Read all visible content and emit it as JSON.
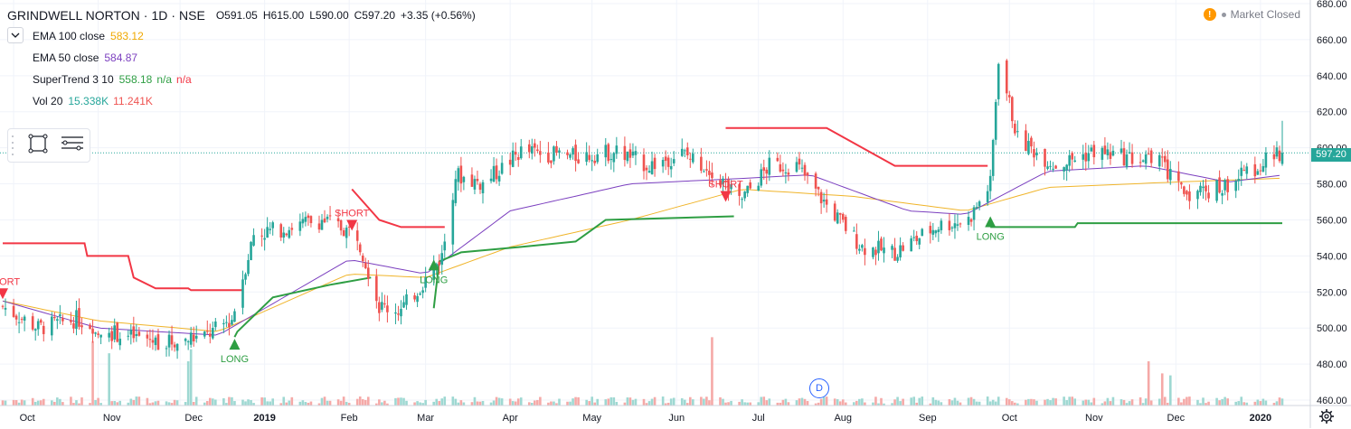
{
  "header": {
    "symbol": "GRINDWELL NORTON",
    "interval": "1D",
    "exchange": "NSE",
    "ohlc": {
      "open": "O591.05",
      "high": "H615.00",
      "low": "L590.00",
      "close": "C597.20",
      "change": "+3.35 (+0.56%)"
    }
  },
  "indicators": [
    {
      "label": "EMA 100 close",
      "values": [
        "583.12"
      ],
      "colors": [
        "#f0a800"
      ]
    },
    {
      "label": "EMA 50 close",
      "values": [
        "584.87"
      ],
      "colors": [
        "#7b3fbf"
      ]
    },
    {
      "label": "SuperTrend 3 10",
      "values": [
        "558.18",
        "n/a",
        "n/a"
      ],
      "colors": [
        "#2e9e43",
        "#2e9e43",
        "#f23645"
      ]
    },
    {
      "label": "Vol 20",
      "values": [
        "15.338K",
        "11.241K"
      ],
      "colors": [
        "#26a69a",
        "#ef5350"
      ]
    }
  ],
  "status": {
    "market": "Market Closed",
    "warning_symbol": "!"
  },
  "price_label": "597.20",
  "d_marker": "D",
  "icons": [
    "chevron-down-icon",
    "rectangle-tool-icon",
    "list-tool-icon",
    "warning-icon",
    "gear-icon"
  ],
  "colors": {
    "up": "#26a69a",
    "down": "#ef5350",
    "long": "#2e9e43",
    "short": "#f23645",
    "ema100": "#f0b429",
    "ema50": "#7b3fbf"
  },
  "chart_data": {
    "type": "candlestick",
    "y_axis": {
      "ticks": [
        460,
        480,
        500,
        520,
        540,
        560,
        580,
        600,
        620,
        640,
        660,
        680
      ],
      "range": [
        457,
        682
      ],
      "position": "right"
    },
    "x_axis": {
      "labels": [
        "Oct",
        "Nov",
        "Dec",
        "2019",
        "Feb",
        "Mar",
        "Apr",
        "May",
        "Jun",
        "Jul",
        "Aug",
        "Sep",
        "Oct",
        "Nov",
        "Dec",
        "2020"
      ]
    },
    "x_range": [
      "2018-09-27",
      "2020-01-09"
    ],
    "grid": true,
    "last_price": 597.2,
    "price_anchors": [
      [
        "2018-09-27",
        512
      ],
      [
        "2018-10-10",
        500
      ],
      [
        "2018-10-24",
        505
      ],
      [
        "2018-11-09",
        496
      ],
      [
        "2018-11-26",
        492
      ],
      [
        "2018-12-10",
        495
      ],
      [
        "2018-12-20",
        505
      ],
      [
        "2018-12-28",
        552
      ],
      [
        "2019-01-10",
        556
      ],
      [
        "2019-01-22",
        560
      ],
      [
        "2019-02-04",
        552
      ],
      [
        "2019-02-12",
        512
      ],
      [
        "2019-02-20",
        510
      ],
      [
        "2019-02-28",
        525
      ],
      [
        "2019-03-07",
        540
      ],
      [
        "2019-03-12",
        585
      ],
      [
        "2019-03-22",
        580
      ],
      [
        "2019-04-05",
        598
      ],
      [
        "2019-04-25",
        595
      ],
      [
        "2019-05-10",
        598
      ],
      [
        "2019-05-22",
        590
      ],
      [
        "2019-06-03",
        597
      ],
      [
        "2019-06-14",
        588
      ],
      [
        "2019-06-24",
        570
      ],
      [
        "2019-07-05",
        590
      ],
      [
        "2019-07-15",
        590
      ],
      [
        "2019-07-26",
        568
      ],
      [
        "2019-08-08",
        545
      ],
      [
        "2019-08-20",
        542
      ],
      [
        "2019-09-05",
        557
      ],
      [
        "2019-09-16",
        560
      ],
      [
        "2019-09-24",
        580
      ],
      [
        "2019-09-27",
        650
      ],
      [
        "2019-10-04",
        605
      ],
      [
        "2019-10-18",
        590
      ],
      [
        "2019-11-01",
        598
      ],
      [
        "2019-11-15",
        594
      ],
      [
        "2019-11-25",
        592
      ],
      [
        "2019-12-04",
        575
      ],
      [
        "2019-12-18",
        578
      ],
      [
        "2019-12-31",
        590
      ],
      [
        "2020-01-09",
        597.2
      ]
    ],
    "ema100_anchors": [
      [
        "2018-09-27",
        515
      ],
      [
        "2018-11-01",
        504
      ],
      [
        "2018-12-15",
        498
      ],
      [
        "2019-02-01",
        530
      ],
      [
        "2019-03-01",
        528
      ],
      [
        "2019-04-01",
        545
      ],
      [
        "2019-05-15",
        560
      ],
      [
        "2019-06-25",
        577
      ],
      [
        "2019-08-05",
        573
      ],
      [
        "2019-09-15",
        565
      ],
      [
        "2019-10-15",
        578
      ],
      [
        "2019-12-01",
        581
      ],
      [
        "2020-01-09",
        583.12
      ]
    ],
    "ema50_anchors": [
      [
        "2018-09-27",
        515
      ],
      [
        "2018-11-01",
        500
      ],
      [
        "2018-12-15",
        496
      ],
      [
        "2019-02-01",
        538
      ],
      [
        "2019-03-01",
        530
      ],
      [
        "2019-04-01",
        565
      ],
      [
        "2019-05-15",
        580
      ],
      [
        "2019-06-25",
        583
      ],
      [
        "2019-07-20",
        585
      ],
      [
        "2019-08-25",
        565
      ],
      [
        "2019-09-15",
        563
      ],
      [
        "2019-10-15",
        587
      ],
      [
        "2019-11-20",
        590
      ],
      [
        "2019-12-20",
        581
      ],
      [
        "2020-01-09",
        584.87
      ]
    ],
    "supertrend_down": [
      [
        [
          "2018-09-27",
          547
        ],
        [
          "2018-10-27",
          547
        ],
        [
          "2018-10-28",
          540
        ],
        [
          "2018-11-12",
          540
        ],
        [
          "2018-11-14",
          528
        ],
        [
          "2018-11-22",
          522
        ],
        [
          "2018-12-04",
          522
        ],
        [
          "2018-12-05",
          521
        ],
        [
          "2018-12-24",
          521
        ]
      ],
      [
        [
          "2019-02-02",
          577
        ],
        [
          "2019-02-12",
          560
        ],
        [
          "2019-02-20",
          556
        ],
        [
          "2019-03-08",
          556
        ]
      ],
      [
        [
          "2019-06-19",
          611
        ],
        [
          "2019-07-26",
          611
        ],
        [
          "2019-08-20",
          590
        ],
        [
          "2019-08-22",
          590
        ],
        [
          "2019-09-23",
          590
        ]
      ]
    ],
    "supertrend_up": [
      [
        [
          "2018-12-21",
          495
        ],
        [
          "2018-12-22",
          498
        ],
        [
          "2019-01-04",
          517
        ],
        [
          "2019-01-25",
          524
        ],
        [
          "2019-02-09",
          528
        ]
      ],
      [
        [
          "2019-03-04",
          511
        ],
        [
          "2019-03-06",
          537
        ],
        [
          "2019-03-14",
          542
        ],
        [
          "2019-04-05",
          545
        ],
        [
          "2019-04-25",
          548
        ],
        [
          "2019-05-06",
          560
        ],
        [
          "2019-06-22",
          562
        ]
      ],
      [
        [
          "2019-09-24",
          556
        ],
        [
          "2019-10-25",
          556
        ],
        [
          "2019-10-26",
          558.18
        ],
        [
          "2020-01-09",
          558.18
        ]
      ]
    ],
    "signals": [
      {
        "type": "SHORT",
        "date": "2018-09-27",
        "price": 518
      },
      {
        "type": "LONG",
        "date": "2018-12-21",
        "price": 492
      },
      {
        "type": "SHORT",
        "date": "2019-02-02",
        "price": 556
      },
      {
        "type": "LONG",
        "date": "2019-03-04",
        "price": 536
      },
      {
        "type": "SHORT",
        "date": "2019-06-19",
        "price": 572
      },
      {
        "type": "LONG",
        "date": "2019-09-24",
        "price": 560
      }
    ],
    "volume_spikes": [
      [
        "2018-10-30",
        32000
      ],
      [
        "2018-11-05",
        26000
      ],
      [
        "2018-12-04",
        22000
      ],
      [
        "2018-12-05",
        28000
      ],
      [
        "2019-06-14",
        34000
      ],
      [
        "2019-11-21",
        22000
      ],
      [
        "2019-11-26",
        16000
      ],
      [
        "2019-11-29",
        15000
      ]
    ]
  }
}
